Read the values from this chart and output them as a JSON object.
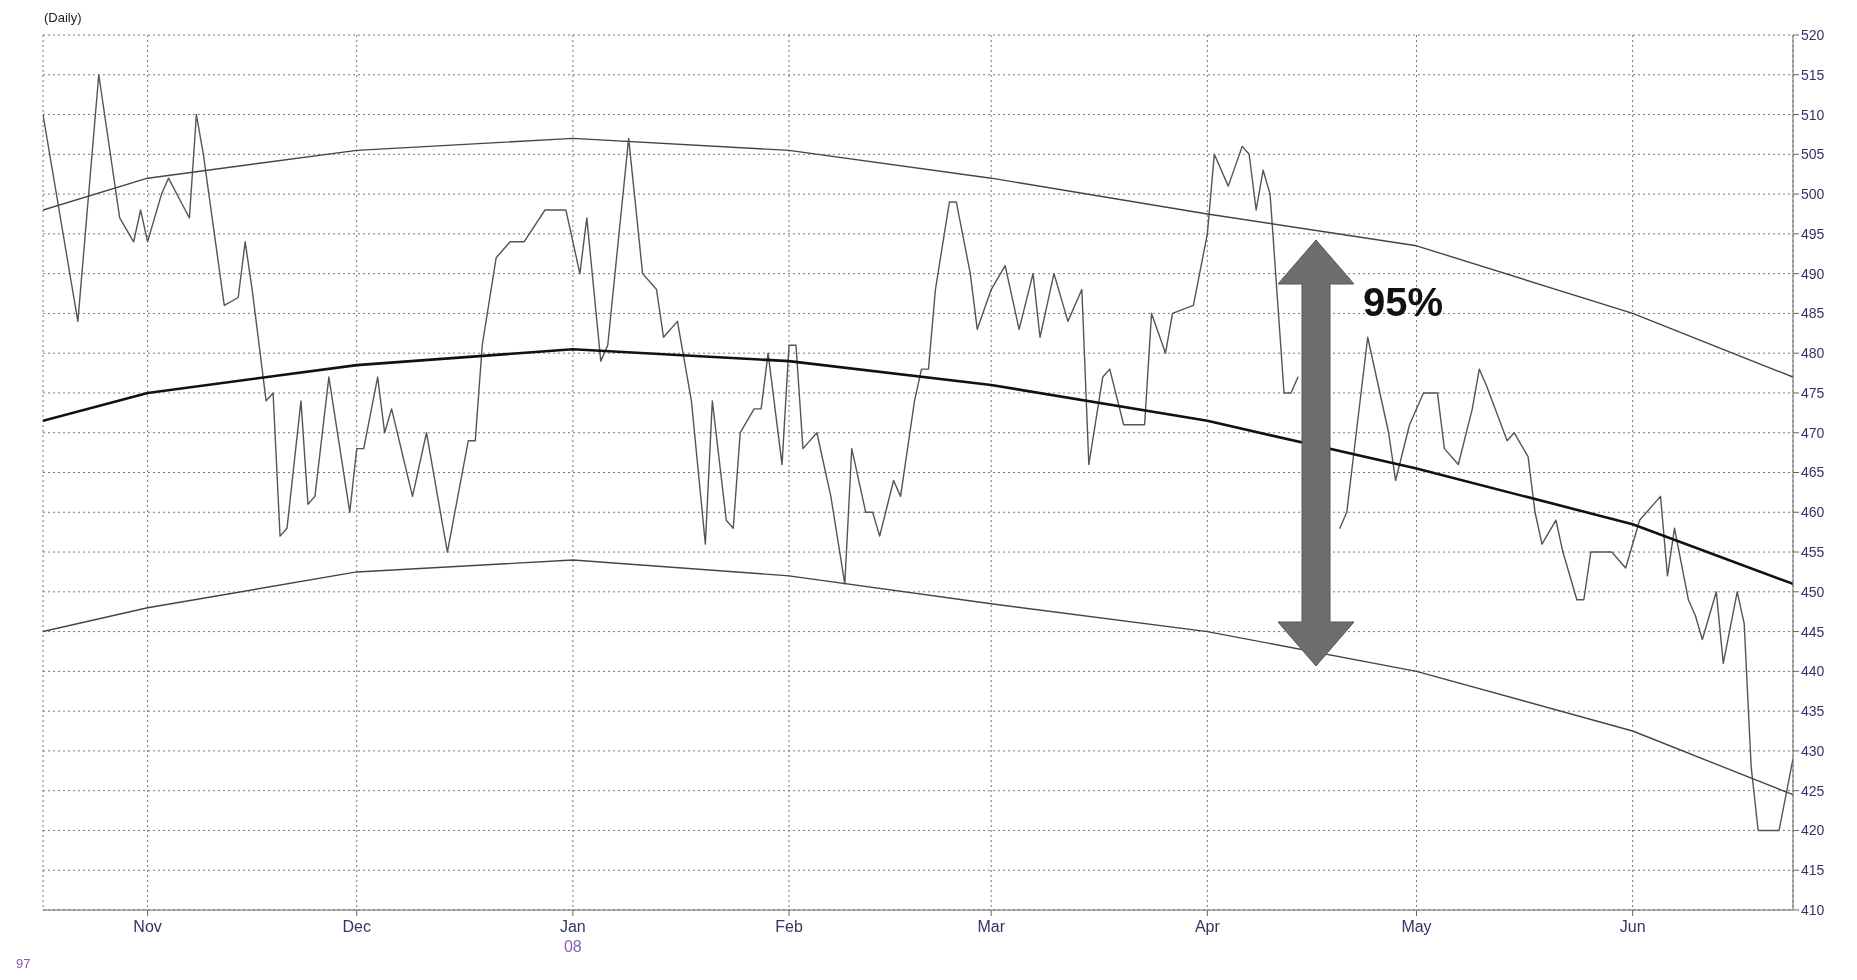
{
  "chart_data": {
    "type": "line",
    "title": "(Daily)",
    "annotations": [
      "95%",
      "97"
    ],
    "xlim": [
      "2007-10-17",
      "2008-06-24"
    ],
    "xticks": [
      {
        "value": "2007-11-01",
        "label": "Nov"
      },
      {
        "value": "2007-12-01",
        "label": "Dec"
      },
      {
        "value": "2008-01-01",
        "label": "Jan\n08"
      },
      {
        "value": "2008-02-01",
        "label": "Feb"
      },
      {
        "value": "2008-03-01",
        "label": "Mar"
      },
      {
        "value": "2008-04-01",
        "label": "Apr"
      },
      {
        "value": "2008-05-01",
        "label": "May"
      },
      {
        "value": "2008-06-01",
        "label": "Jun"
      }
    ],
    "ylim": [
      410,
      520
    ],
    "yticks": [
      410,
      415,
      420,
      425,
      430,
      435,
      440,
      445,
      450,
      455,
      460,
      465,
      470,
      475,
      480,
      485,
      490,
      495,
      500,
      505,
      510,
      515,
      520
    ],
    "grid": true,
    "marker": "none",
    "line_style": "solid",
    "series": [
      {
        "color": "#555555",
        "x": [
          "2007-10-17",
          "2007-10-22",
          "2007-10-25",
          "2007-10-28",
          "2007-10-30",
          "2007-10-31",
          "2007-11-01",
          "2007-11-03",
          "2007-11-04",
          "2007-11-07",
          "2007-11-08",
          "2007-11-09",
          "2007-11-12",
          "2007-11-14",
          "2007-11-15",
          "2007-11-16",
          "2007-11-18",
          "2007-11-19",
          "2007-11-20",
          "2007-11-21",
          "2007-11-23",
          "2007-11-24",
          "2007-11-25",
          "2007-11-27",
          "2007-11-30",
          "2007-12-01",
          "2007-12-02",
          "2007-12-04",
          "2007-12-05",
          "2007-12-06",
          "2007-12-09",
          "2007-12-11",
          "2007-12-14",
          "2007-12-17",
          "2007-12-18",
          "2007-12-19",
          "2007-12-21",
          "2007-12-23",
          "2007-12-25",
          "2007-12-28",
          "2007-12-31",
          "2008-01-02",
          "2008-01-03",
          "2008-01-05",
          "2008-01-06",
          "2008-01-09",
          "2008-01-11",
          "2008-01-13",
          "2008-01-14",
          "2008-01-16",
          "2008-01-18",
          "2008-01-20",
          "2008-01-21",
          "2008-01-23",
          "2008-01-24",
          "2008-01-25",
          "2008-01-27",
          "2008-01-28",
          "2008-01-29",
          "2008-01-31",
          "2008-02-01",
          "2008-02-02",
          "2008-02-03",
          "2008-02-05",
          "2008-02-07",
          "2008-02-09",
          "2008-02-10",
          "2008-02-12",
          "2008-02-13",
          "2008-02-14",
          "2008-02-16",
          "2008-02-17",
          "2008-02-19",
          "2008-02-20",
          "2008-02-21",
          "2008-02-22",
          "2008-02-24",
          "2008-02-25",
          "2008-02-27",
          "2008-02-28",
          "2008-03-01",
          "2008-03-03",
          "2008-03-05",
          "2008-03-07",
          "2008-03-08",
          "2008-03-10",
          "2008-03-12",
          "2008-03-14",
          "2008-03-15",
          "2008-03-17",
          "2008-03-18",
          "2008-03-20",
          "2008-03-23",
          "2008-03-24",
          "2008-03-26",
          "2008-03-27",
          "2008-03-30",
          "2008-04-01",
          "2008-04-02",
          "2008-04-04",
          "2008-04-06",
          "2008-04-07",
          "2008-04-08",
          "2008-04-09",
          "2008-04-10",
          "2008-04-12",
          "2008-04-13",
          "2008-04-14",
          "2008-04-17",
          "2008-04-20",
          "2008-04-21",
          "2008-04-24",
          "2008-04-27",
          "2008-04-28",
          "2008-04-30",
          "2008-05-02",
          "2008-05-04",
          "2008-05-05",
          "2008-05-07",
          "2008-05-09",
          "2008-05-10",
          "2008-05-11",
          "2008-05-14",
          "2008-05-15",
          "2008-05-17",
          "2008-05-18",
          "2008-05-19",
          "2008-05-21",
          "2008-05-22",
          "2008-05-24",
          "2008-05-25",
          "2008-05-26",
          "2008-05-29",
          "2008-05-31",
          "2008-06-02",
          "2008-06-05",
          "2008-06-06",
          "2008-06-07",
          "2008-06-09",
          "2008-06-10",
          "2008-06-11",
          "2008-06-13",
          "2008-06-14",
          "2008-06-16",
          "2008-06-17",
          "2008-06-18",
          "2008-06-19",
          "2008-06-22",
          "2008-06-24"
        ],
        "values": [
          510,
          484,
          515,
          497,
          494,
          498,
          494,
          500,
          502,
          497,
          510,
          505,
          486,
          487,
          494,
          488,
          474,
          475,
          457,
          458,
          474,
          461,
          462,
          477,
          460,
          468,
          468,
          477,
          470,
          473,
          462,
          470,
          455,
          469,
          469,
          481,
          492,
          494,
          494,
          498,
          498,
          490,
          497,
          479,
          481,
          507,
          490,
          488,
          482,
          484,
          474,
          456,
          474,
          459,
          458,
          470,
          473,
          473,
          480,
          466,
          481,
          481,
          468,
          470,
          462,
          451,
          468,
          460,
          460,
          457,
          464,
          462,
          474,
          478,
          478,
          488,
          499,
          499,
          490,
          483,
          488,
          491,
          483,
          490,
          482,
          490,
          484,
          488,
          466,
          477,
          478,
          471,
          471,
          485,
          480,
          485,
          486,
          495,
          505,
          501,
          506,
          505,
          498,
          503,
          500,
          475,
          475,
          477,
          null,
          458,
          460,
          482,
          470,
          464,
          471,
          475,
          475,
          468,
          466,
          473,
          478,
          476,
          469,
          470,
          467,
          460,
          456,
          459,
          455,
          449,
          449,
          455,
          455,
          453,
          459,
          462,
          452,
          458,
          449,
          447,
          444,
          450,
          441,
          450,
          446,
          428,
          420,
          420,
          429
        ]
      },
      {
        "color": "#111111",
        "x": [
          "2007-10-17",
          "2007-11-01",
          "2007-12-01",
          "2008-01-01",
          "2008-02-01",
          "2008-03-01",
          "2008-04-01",
          "2008-05-01",
          "2008-06-01",
          "2008-06-24"
        ],
        "values": [
          471.5,
          475,
          478.5,
          480.5,
          479,
          476,
          471.5,
          465.5,
          458.5,
          451
        ]
      },
      {
        "color": "#444444",
        "x": [
          "2007-10-17",
          "2007-11-01",
          "2007-12-01",
          "2008-01-01",
          "2008-02-01",
          "2008-03-01",
          "2008-04-01",
          "2008-05-01",
          "2008-06-01",
          "2008-06-24"
        ],
        "values": [
          498,
          502,
          505.5,
          507,
          505.5,
          502,
          497.5,
          493.5,
          485,
          477
        ]
      },
      {
        "color": "#444444",
        "x": [
          "2007-10-17",
          "2007-11-01",
          "2007-12-01",
          "2008-01-01",
          "2008-02-01",
          "2008-03-01",
          "2008-04-01",
          "2008-05-01",
          "2008-06-01",
          "2008-06-24"
        ],
        "values": [
          445,
          448,
          452.5,
          454,
          452,
          448.5,
          445,
          440,
          432.5,
          424.5
        ]
      }
    ]
  }
}
